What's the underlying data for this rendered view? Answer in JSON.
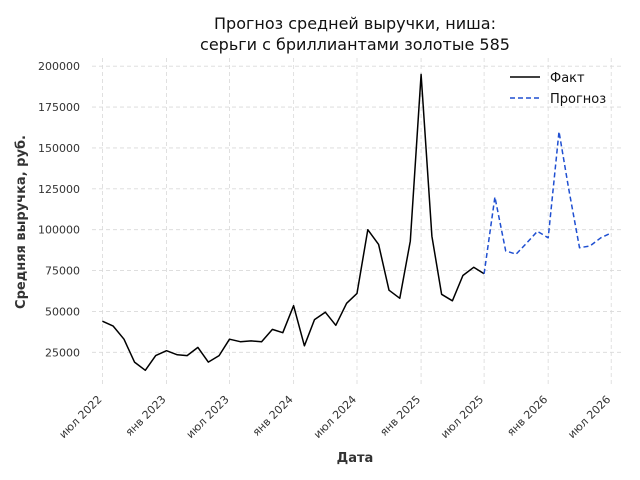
{
  "chart_data": {
    "type": "line",
    "title_lines": [
      "Прогноз средней выручки, ниша:",
      "серьги с бриллиантами золотые 585"
    ],
    "xlabel": "Дата",
    "ylabel": "Средняя выручка, руб.",
    "ylim": [
      5000,
      205000
    ],
    "xlim": [
      "2022-06-01",
      "2026-08-01"
    ],
    "y_ticks": [
      25000,
      50000,
      75000,
      100000,
      125000,
      150000,
      175000,
      200000
    ],
    "x_ticks": [
      {
        "date": "2022-07-01",
        "label": "июл 2022"
      },
      {
        "date": "2023-01-01",
        "label": "янв 2023"
      },
      {
        "date": "2023-07-01",
        "label": "июл 2023"
      },
      {
        "date": "2024-01-01",
        "label": "янв 2024"
      },
      {
        "date": "2024-07-01",
        "label": "июл 2024"
      },
      {
        "date": "2025-01-01",
        "label": "янв 2025"
      },
      {
        "date": "2025-07-01",
        "label": "июл 2025"
      },
      {
        "date": "2026-01-01",
        "label": "янв 2026"
      },
      {
        "date": "2026-07-01",
        "label": "июл 2026"
      }
    ],
    "grid": true,
    "legend_position": "top-right",
    "series": [
      {
        "name": "Факт",
        "color": "#000000",
        "style": "solid",
        "x": [
          "2022-07-01",
          "2022-08-01",
          "2022-09-01",
          "2022-10-01",
          "2022-11-01",
          "2022-12-01",
          "2023-01-01",
          "2023-02-01",
          "2023-03-01",
          "2023-04-01",
          "2023-05-01",
          "2023-06-01",
          "2023-07-01",
          "2023-08-01",
          "2023-09-01",
          "2023-10-01",
          "2023-11-01",
          "2023-12-01",
          "2024-01-01",
          "2024-02-01",
          "2024-03-01",
          "2024-04-01",
          "2024-05-01",
          "2024-06-01",
          "2024-07-01",
          "2024-08-01",
          "2024-09-01",
          "2024-10-01",
          "2024-11-01",
          "2024-12-01",
          "2025-01-01",
          "2025-02-01",
          "2025-03-01",
          "2025-04-01",
          "2025-05-01",
          "2025-06-01",
          "2025-07-01"
        ],
        "y": [
          44000,
          41000,
          33000,
          19000,
          14000,
          23000,
          26000,
          23500,
          23000,
          28000,
          19000,
          23000,
          33000,
          31500,
          32000,
          31500,
          39000,
          37000,
          53500,
          29000,
          45000,
          49500,
          41500,
          55000,
          61000,
          100000,
          91000,
          63000,
          58000,
          93000,
          195000,
          96000,
          60500,
          56500,
          72000,
          77000,
          73000
        ]
      },
      {
        "name": "Прогноз",
        "color": "#1f4fd1",
        "style": "dashed",
        "x": [
          "2025-07-01",
          "2025-08-01",
          "2025-09-01",
          "2025-10-01",
          "2025-11-01",
          "2025-12-01",
          "2026-01-01",
          "2026-02-01",
          "2026-03-01",
          "2026-04-01",
          "2026-05-01",
          "2026-06-01",
          "2026-07-01"
        ],
        "y": [
          73000,
          120000,
          87000,
          85000,
          92000,
          99000,
          95000,
          160000,
          125000,
          89000,
          90000,
          95000,
          98000
        ]
      }
    ]
  }
}
